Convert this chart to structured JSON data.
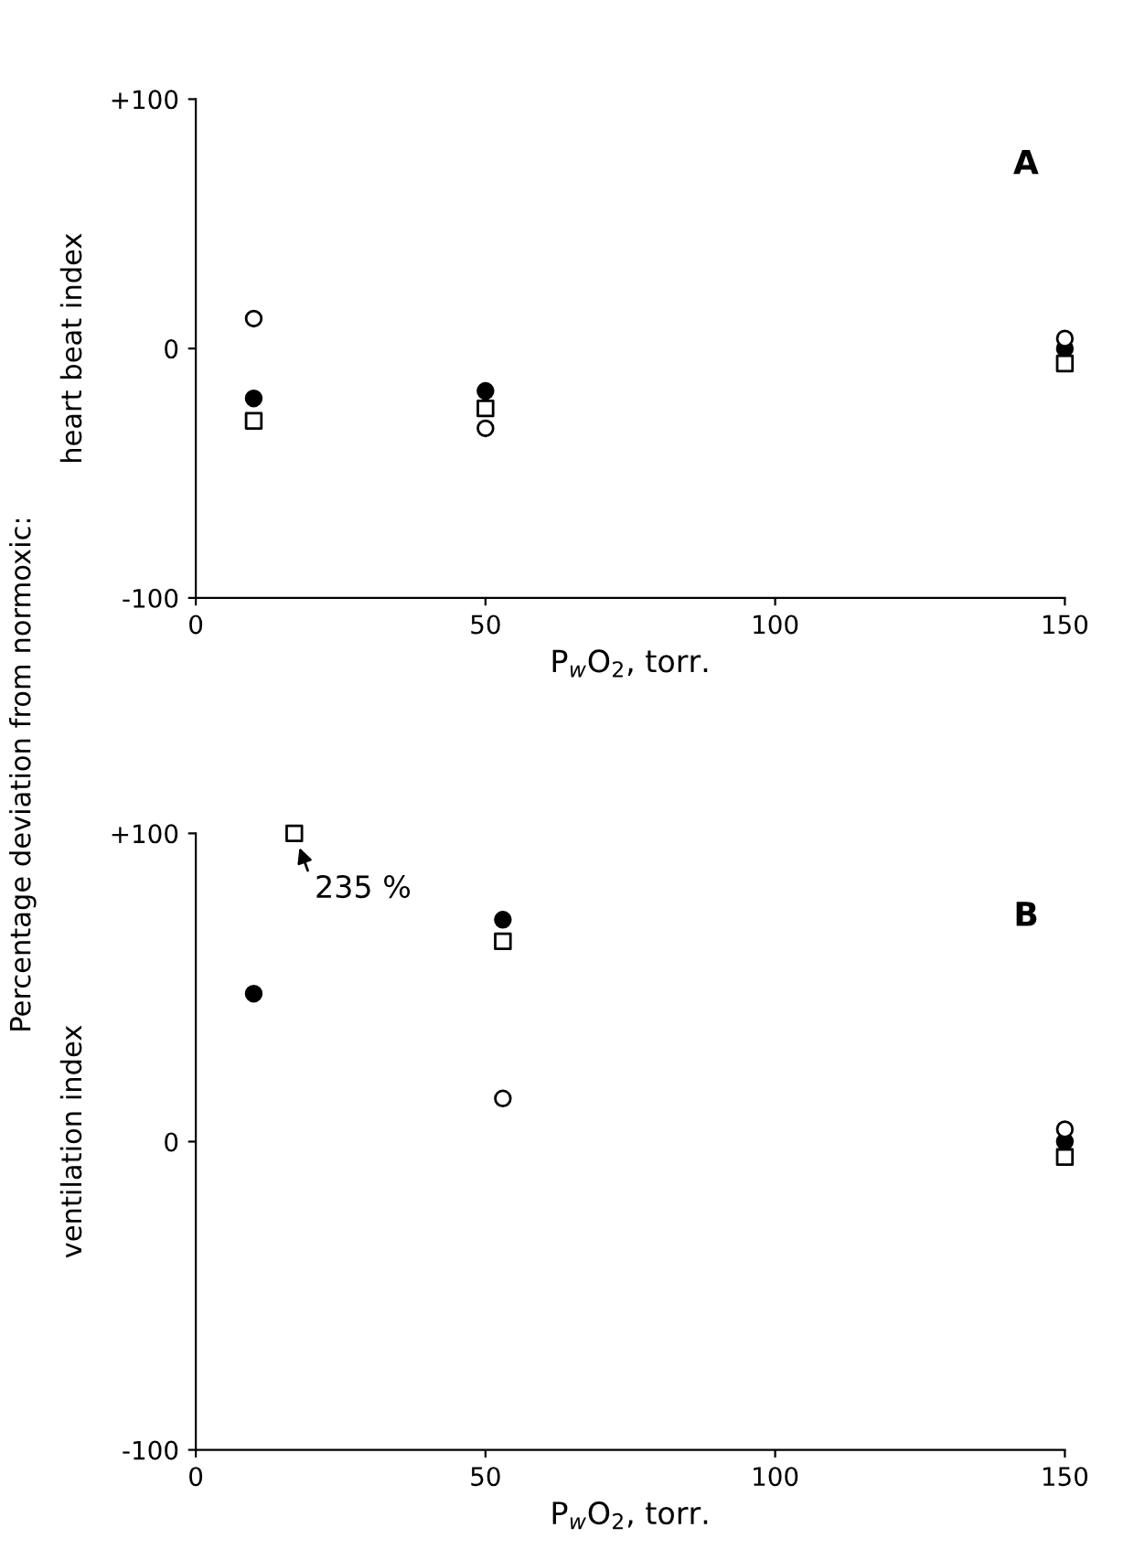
{
  "chart_data": [
    {
      "type": "scatter",
      "title": "A",
      "ylabel": "heart beat index",
      "xlabel": "P$_{w}$O$_{2}$, torr.",
      "annotations": [
        "Percentage deviation from normoxic:"
      ],
      "xlim": [
        0,
        150
      ],
      "ylim": [
        -100,
        100
      ],
      "xticks": [
        0,
        50,
        100,
        150
      ],
      "yticks": [
        {
          "value": 100,
          "label": "+100"
        },
        0,
        -100
      ],
      "grid": false,
      "legend": false,
      "series": [
        {
          "color": "#000000",
          "marker": "filled circle",
          "x": [
            10,
            50,
            150
          ],
          "values": [
            -20,
            -17,
            0
          ]
        },
        {
          "color": "#000000",
          "marker": "square",
          "x": [
            10,
            50,
            150
          ],
          "values": [
            -29,
            -24,
            -6
          ]
        },
        {
          "color": "#000000",
          "marker": "circle",
          "x": [
            10,
            50,
            150
          ],
          "values": [
            12,
            -32,
            4
          ]
        }
      ]
    },
    {
      "type": "scatter",
      "title": "B",
      "ylabel": "ventilation index",
      "xlabel": "P$_{w}$O$_{2}$, torr.",
      "annotations": [
        {
          "text": "235 %",
          "x": 17,
          "y": 100
        }
      ],
      "xlim": [
        0,
        150
      ],
      "ylim": [
        -100,
        100
      ],
      "xticks": [
        0,
        50,
        100,
        150
      ],
      "yticks": [
        {
          "value": 100,
          "label": "+100"
        },
        0,
        -100
      ],
      "grid": false,
      "legend": false,
      "series": [
        {
          "color": "#000000",
          "marker": "filled circle",
          "x": [
            10,
            53,
            150
          ],
          "values": [
            48,
            72,
            0
          ]
        },
        {
          "color": "#000000",
          "marker": "square",
          "x": [
            17,
            53,
            150
          ],
          "values": [
            100,
            65,
            -5
          ]
        },
        {
          "color": "#000000",
          "marker": "circle",
          "x": [
            53,
            150
          ],
          "values": [
            14,
            4
          ]
        }
      ]
    }
  ]
}
